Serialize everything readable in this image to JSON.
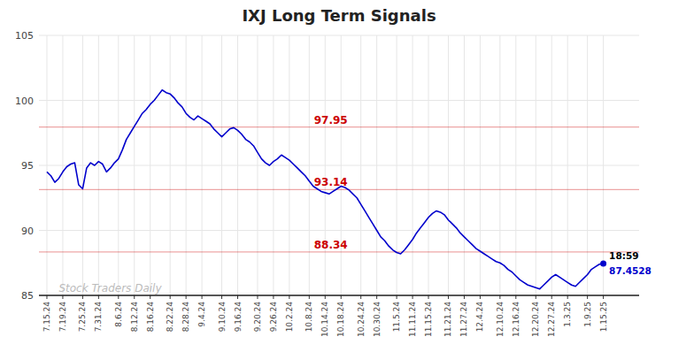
{
  "chart_data": {
    "type": "line",
    "title": "IXJ Long Term Signals",
    "categories": [
      "7.15.24",
      null,
      null,
      null,
      "7.19.24",
      null,
      null,
      null,
      null,
      "7.25.24",
      null,
      null,
      null,
      "7.31.24",
      null,
      null,
      null,
      null,
      "8.6.24",
      null,
      null,
      null,
      "8.12.24",
      null,
      null,
      null,
      "8.16.24",
      null,
      null,
      null,
      null,
      "8.22.24",
      null,
      null,
      null,
      "8.28.24",
      null,
      null,
      null,
      "9.4.24",
      null,
      null,
      null,
      null,
      "9.10.24",
      null,
      null,
      null,
      "9.16.24",
      null,
      null,
      null,
      null,
      "9.20.24",
      null,
      null,
      null,
      "9.26.24",
      null,
      null,
      null,
      "10.2.24",
      null,
      null,
      null,
      null,
      "10.8.24",
      null,
      null,
      null,
      "10.14.24",
      null,
      null,
      null,
      "10.18.24",
      null,
      null,
      null,
      null,
      "10.24.24",
      null,
      null,
      null,
      "10.30.24",
      null,
      null,
      null,
      null,
      "11.5.24",
      null,
      null,
      null,
      "11.11.24",
      null,
      null,
      null,
      "11.15.24",
      null,
      null,
      null,
      null,
      "11.21.24",
      null,
      null,
      null,
      "11.27.24",
      null,
      null,
      null,
      "12.4.24",
      null,
      null,
      null,
      null,
      "12.10.24",
      null,
      null,
      null,
      "12.16.24",
      null,
      null,
      null,
      null,
      "12.20.24",
      null,
      null,
      null,
      "12.27.24",
      null,
      null,
      null,
      "1.3.25",
      null,
      null,
      null,
      null,
      "1.9.25",
      null,
      null,
      null,
      "1.15.25"
    ],
    "values": [
      94.5,
      94.2,
      93.7,
      94.0,
      94.5,
      94.9,
      95.1,
      95.2,
      93.5,
      93.2,
      94.8,
      95.2,
      95.0,
      95.3,
      95.1,
      94.5,
      94.8,
      95.2,
      95.5,
      96.2,
      97.0,
      97.5,
      98.0,
      98.5,
      99.0,
      99.3,
      99.7,
      100.0,
      100.4,
      100.8,
      100.6,
      100.5,
      100.2,
      99.8,
      99.5,
      99.0,
      98.7,
      98.5,
      98.8,
      98.6,
      98.4,
      98.2,
      97.8,
      97.5,
      97.2,
      97.5,
      97.8,
      97.9,
      97.7,
      97.4,
      97.0,
      96.8,
      96.5,
      96.0,
      95.5,
      95.2,
      95.0,
      95.3,
      95.5,
      95.8,
      95.6,
      95.4,
      95.1,
      94.8,
      94.5,
      94.2,
      93.8,
      93.4,
      93.2,
      93.0,
      92.9,
      92.8,
      93.0,
      93.2,
      93.4,
      93.3,
      93.1,
      92.8,
      92.5,
      92.0,
      91.5,
      91.0,
      90.5,
      90.0,
      89.5,
      89.2,
      88.8,
      88.5,
      88.3,
      88.2,
      88.5,
      88.9,
      89.3,
      89.8,
      90.2,
      90.6,
      91.0,
      91.3,
      91.5,
      91.4,
      91.2,
      90.8,
      90.5,
      90.2,
      89.8,
      89.5,
      89.2,
      88.9,
      88.6,
      88.4,
      88.2,
      88.0,
      87.8,
      87.6,
      87.5,
      87.3,
      87.0,
      86.8,
      86.5,
      86.2,
      86.0,
      85.8,
      85.7,
      85.6,
      85.5,
      85.8,
      86.1,
      86.4,
      86.6,
      86.4,
      86.2,
      86.0,
      85.8,
      85.7,
      86.0,
      86.3,
      86.6,
      87.0,
      87.2,
      87.4,
      87.45
    ],
    "color": "#0000cc",
    "ylim": [
      85,
      105
    ],
    "yticks": [
      85,
      90,
      95,
      100,
      105
    ],
    "grid": true,
    "reference_lines": [
      {
        "value": 88.34,
        "label": "88.34",
        "color": "#cc0000"
      },
      {
        "value": 93.14,
        "label": "93.14",
        "color": "#cc0000"
      },
      {
        "value": 97.95,
        "label": "97.95",
        "color": "#cc0000"
      }
    ],
    "annotations": [
      {
        "text": "18:59",
        "color": "#000000"
      },
      {
        "text": "87.4528",
        "color": "#0000cc"
      },
      {
        "text": "Stock Traders Daily",
        "color": "#bbbbbb"
      }
    ]
  }
}
